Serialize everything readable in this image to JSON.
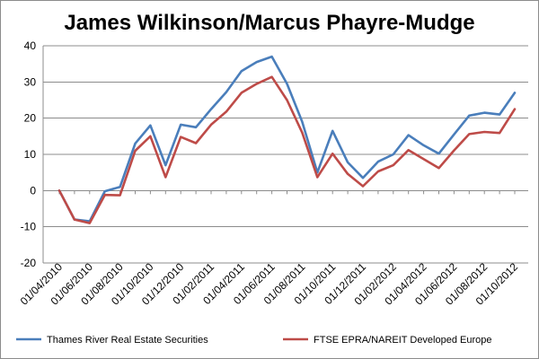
{
  "chart_data": {
    "type": "line",
    "title": "James Wilkinson/Marcus Phayre-Mudge",
    "xlabel": "",
    "ylabel": "",
    "ylim": [
      -20,
      40
    ],
    "yticks": [
      -20,
      -10,
      0,
      10,
      20,
      30,
      40
    ],
    "grid": "horizontal",
    "legend_position": "bottom",
    "x": [
      "01/04/2010",
      "01/05/2010",
      "01/06/2010",
      "01/07/2010",
      "01/08/2010",
      "01/09/2010",
      "01/10/2010",
      "01/11/2010",
      "01/12/2010",
      "01/01/2011",
      "01/02/2011",
      "01/03/2011",
      "01/04/2011",
      "01/05/2011",
      "01/06/2011",
      "01/07/2011",
      "01/08/2011",
      "01/09/2011",
      "01/10/2011",
      "01/11/2011",
      "01/12/2011",
      "01/01/2012",
      "01/02/2012",
      "01/03/2012",
      "01/04/2012",
      "01/05/2012",
      "01/06/2012",
      "01/07/2012",
      "01/08/2012",
      "01/09/2012",
      "01/10/2012"
    ],
    "xtick_labels": [
      "01/04/2010",
      "01/06/2010",
      "01/08/2010",
      "01/10/2010",
      "01/12/2010",
      "01/02/2011",
      "01/04/2011",
      "01/06/2011",
      "01/08/2011",
      "01/10/2011",
      "01/12/2011",
      "01/02/2012",
      "01/04/2012",
      "01/06/2012",
      "01/08/2012",
      "01/10/2012"
    ],
    "series": [
      {
        "name": "Thames River Real Estate Securities",
        "color": "#4a7ebb",
        "values": [
          0,
          -8,
          -8.5,
          -0.2,
          1,
          13,
          18,
          7,
          18.2,
          17.5,
          22.5,
          27.2,
          33,
          35.5,
          37,
          29.5,
          19,
          5,
          16.5,
          7.8,
          3.5,
          8,
          10,
          15.3,
          12.5,
          10.2,
          15.5,
          20.7,
          21.5,
          21,
          27
        ]
      },
      {
        "name": "FTSE EPRA/NAREIT Developed Europe",
        "color": "#be4b48",
        "values": [
          0,
          -8,
          -9,
          -1.2,
          -1.3,
          11,
          15,
          3.7,
          14.8,
          13.1,
          18.2,
          21.8,
          27,
          29.5,
          31.4,
          25,
          16,
          3.7,
          10.2,
          4.6,
          1.2,
          5.3,
          7,
          11.2,
          8.7,
          6.2,
          11.1,
          15.6,
          16.2,
          15.9,
          22.5
        ]
      }
    ]
  }
}
